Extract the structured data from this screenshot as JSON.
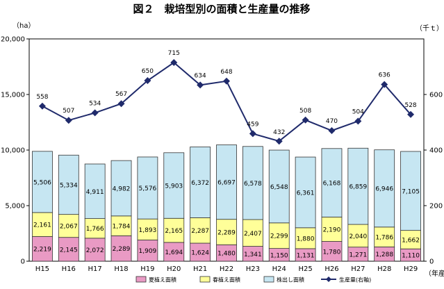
{
  "chart_data": {
    "type": "bar",
    "title": "図２　栽培型別の面積と生産量の推移",
    "left_unit": "（ha）",
    "right_unit": "（千ｔ）",
    "x_unit": "（年産）",
    "categories": [
      "H15",
      "H16",
      "H17",
      "H18",
      "H19",
      "H20",
      "H21",
      "H22",
      "H23",
      "H24",
      "H25",
      "H26",
      "H27",
      "H28",
      "H29"
    ],
    "left_axis": {
      "min": 0,
      "max": 20000,
      "ticks": [
        0,
        5000,
        10000,
        15000,
        20000
      ],
      "tick_labels": [
        "0",
        "5,000",
        "10,000",
        "15,000",
        "20,000"
      ]
    },
    "right_axis": {
      "min": 0,
      "max": 800,
      "ticks": [
        0,
        200,
        400,
        600
      ],
      "tick_labels": [
        "0",
        "200",
        "400",
        "600"
      ]
    },
    "series": [
      {
        "name": "夏植え面積",
        "kind": "bar",
        "color": "#e99ac4",
        "values": [
          2219,
          2145,
          2072,
          2289,
          1909,
          1694,
          1624,
          1480,
          1341,
          1150,
          1131,
          1780,
          1271,
          1288,
          1110
        ],
        "labels": [
          "2,219",
          "2,145",
          "2,072",
          "2,289",
          "1,909",
          "1,694",
          "1,624",
          "1,480",
          "1,341",
          "1,150",
          "1,131",
          "1,780",
          "1,271",
          "1,288",
          "1,110"
        ]
      },
      {
        "name": "春植え面積",
        "kind": "bar",
        "color": "#ffff99",
        "values": [
          2161,
          2067,
          1766,
          1784,
          1893,
          2165,
          2287,
          2289,
          2407,
          2299,
          1880,
          2190,
          2040,
          1786,
          1662
        ],
        "labels": [
          "2,161",
          "2,067",
          "1,766",
          "1,784",
          "1,893",
          "2,165",
          "2,287",
          "2,289",
          "2,407",
          "2,299",
          "1,880",
          "2,190",
          "2,040",
          "1,786",
          "1,662"
        ]
      },
      {
        "name": "株出し面積",
        "kind": "bar",
        "color": "#c6e6f2",
        "values": [
          5506,
          5334,
          4911,
          4982,
          5576,
          5903,
          6372,
          6697,
          6578,
          6548,
          6361,
          6168,
          6859,
          6946,
          7105
        ],
        "labels": [
          "5,506",
          "5,334",
          "4,911",
          "4,982",
          "5,576",
          "5,903",
          "6,372",
          "6,697",
          "6,578",
          "6,548",
          "6,361",
          "6,168",
          "6,859",
          "6,946",
          "7,105"
        ]
      },
      {
        "name": "生産量(右軸)",
        "kind": "line",
        "axis": "right",
        "color": "#1f2a6b",
        "values": [
          558,
          507,
          534,
          567,
          650,
          715,
          634,
          648,
          459,
          432,
          508,
          470,
          504,
          636,
          528
        ],
        "labels": [
          "558",
          "507",
          "534",
          "567",
          "650",
          "715",
          "634",
          "648",
          "459",
          "432",
          "508",
          "470",
          "504",
          "636",
          "528"
        ]
      }
    ],
    "grid": false,
    "legend_position": "bottom"
  }
}
